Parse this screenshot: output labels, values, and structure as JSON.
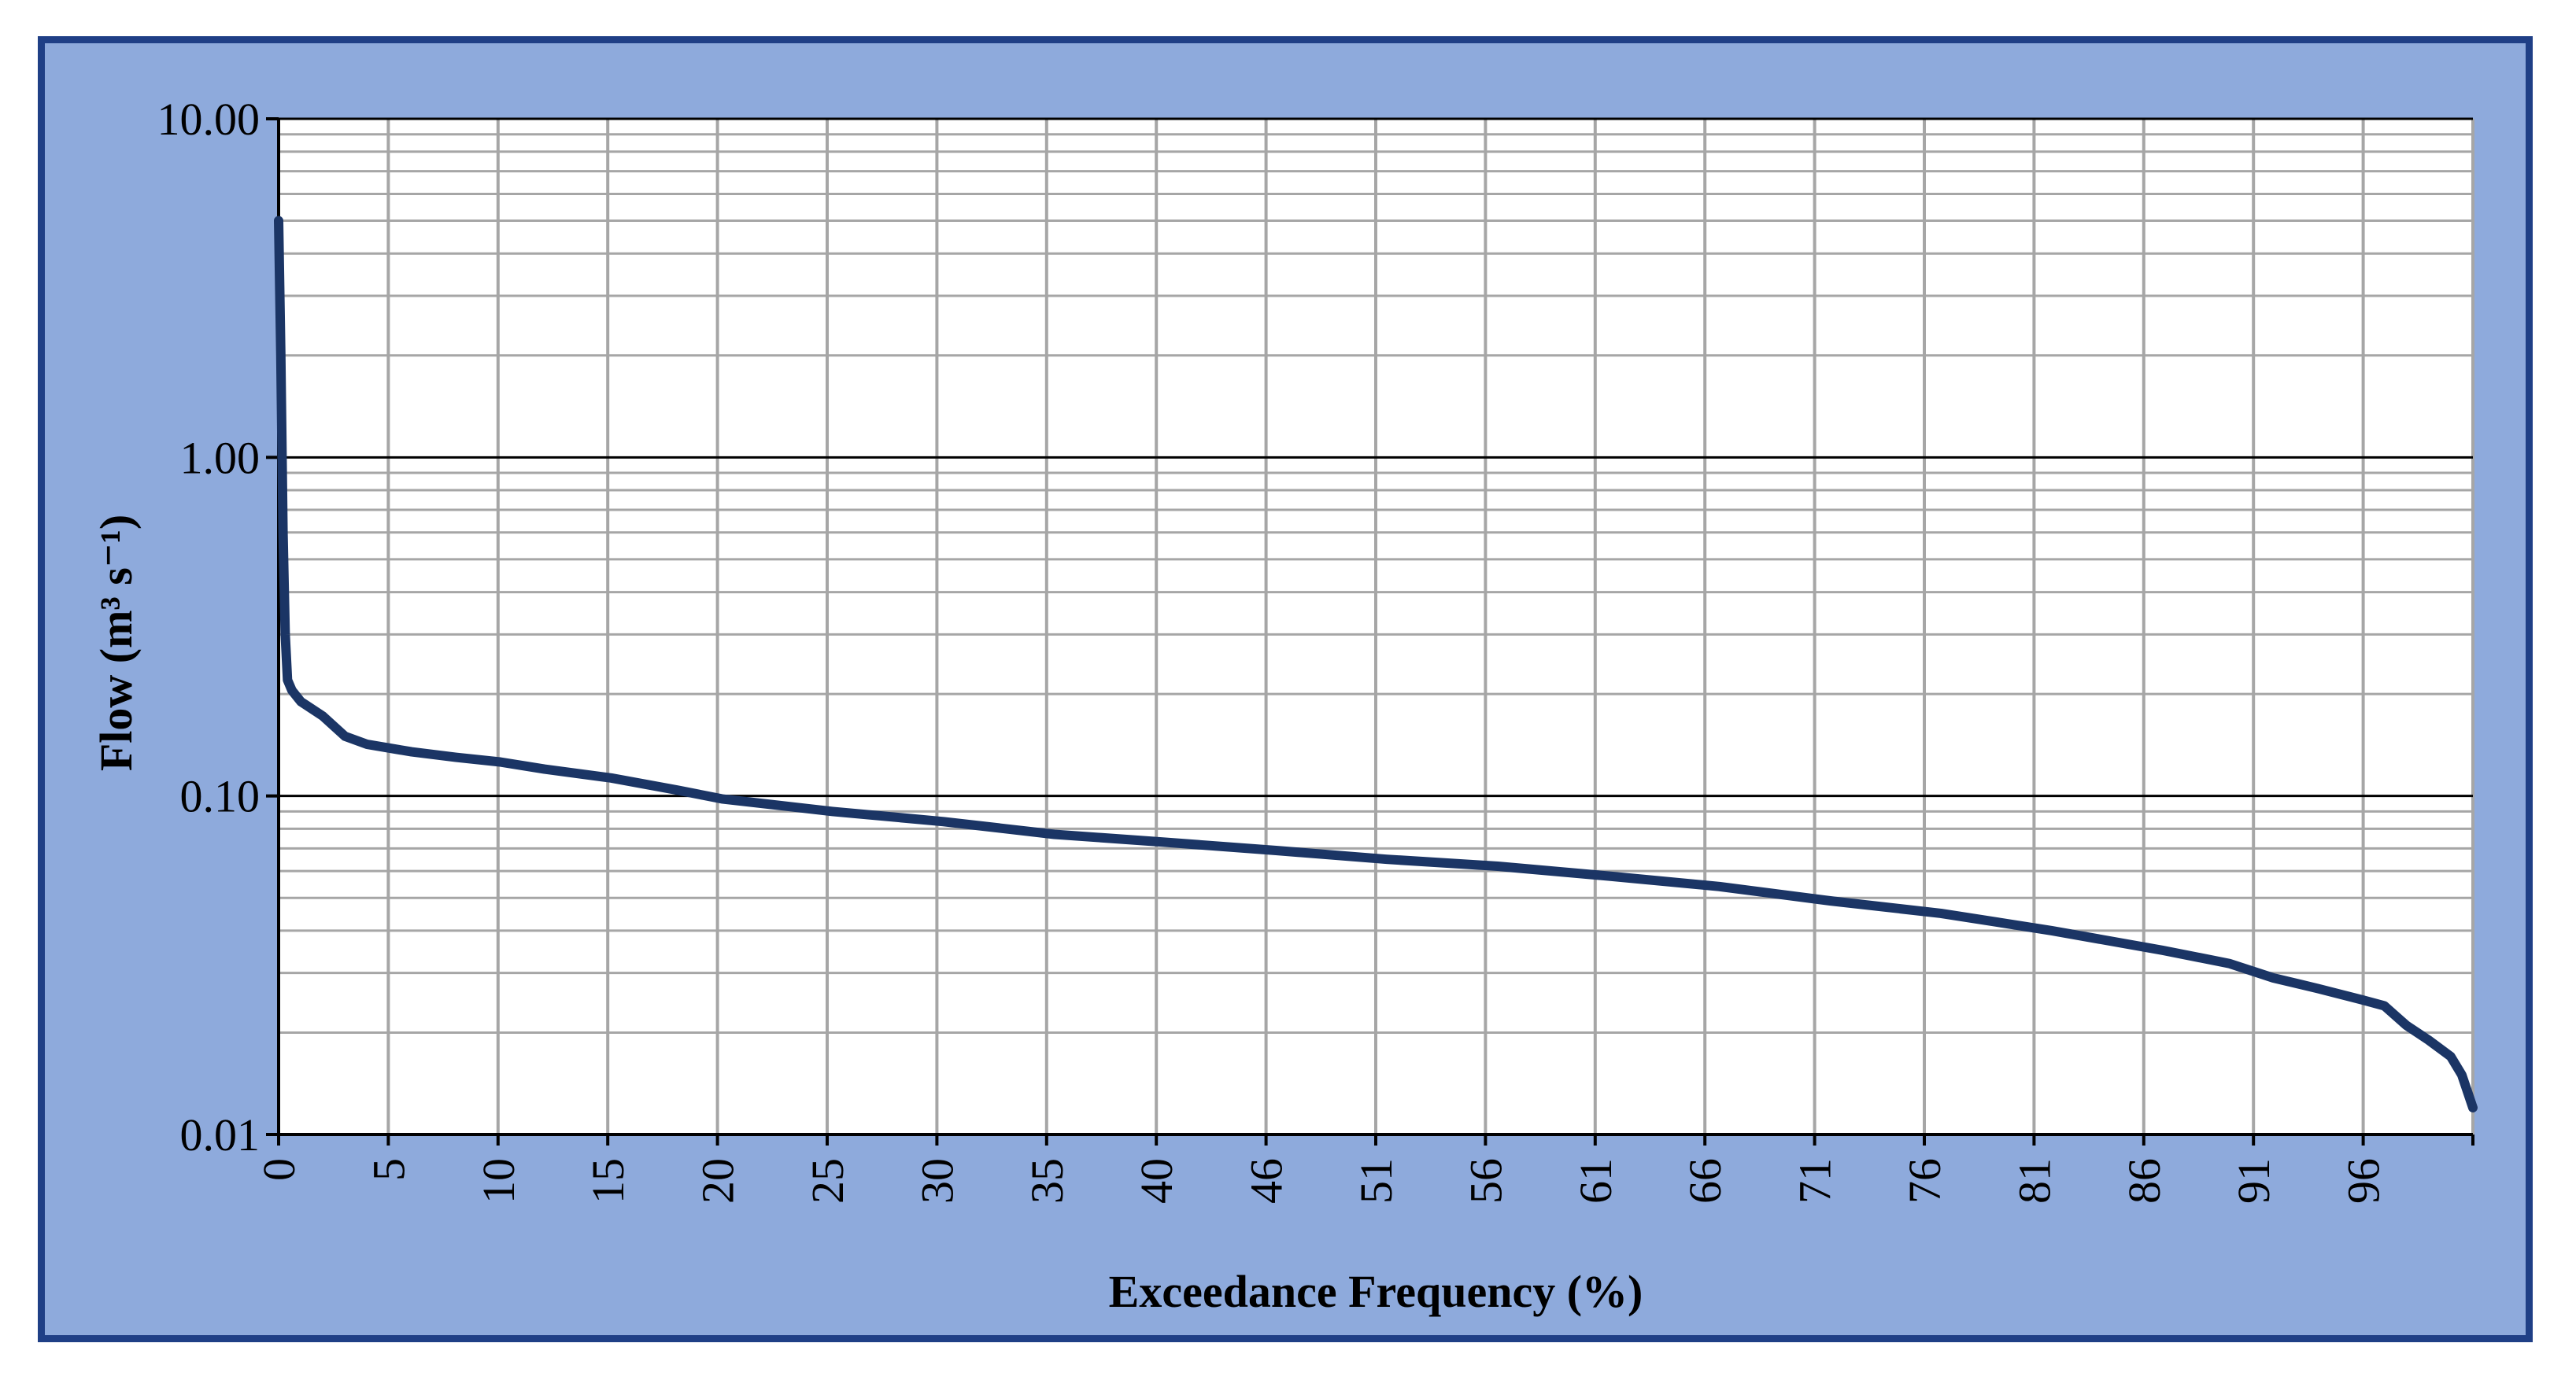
{
  "colors": {
    "frame_border": "#1f3f86",
    "chart_background": "#8eaadc",
    "plot_background": "#ffffff",
    "major_grid": "#000000",
    "minor_grid": "#a6a6a6",
    "series_line": "#1b3565"
  },
  "chart_data": {
    "type": "line",
    "title": "",
    "xlabel": "Exceedance Frequency (%)",
    "ylabel": "Flow (m³ s⁻¹)",
    "x_ticks": [
      "0",
      "5",
      "10",
      "15",
      "20",
      "25",
      "30",
      "35",
      "40",
      "46",
      "51",
      "56",
      "61",
      "66",
      "71",
      "76",
      "81",
      "86",
      "91",
      "96"
    ],
    "y_ticks": [
      "10.00",
      "1.00",
      "0.10",
      "0.01"
    ],
    "y_scale": "log",
    "ylim": [
      0.01,
      10
    ],
    "xlim": [
      0,
      99
    ],
    "grid": true,
    "legend": "none",
    "series": [
      {
        "x": [
          0,
          0.1,
          0.2,
          0.3,
          0.4,
          0.6,
          1,
          2,
          3,
          4,
          6,
          8,
          10,
          12,
          15,
          18,
          20,
          25,
          30,
          35,
          40,
          45,
          50,
          55,
          60,
          65,
          70,
          75,
          80,
          85,
          88,
          90,
          92,
          94,
          95,
          96,
          97,
          98,
          98.5,
          99
        ],
        "y": [
          5.0,
          2.0,
          0.6,
          0.3,
          0.22,
          0.205,
          0.19,
          0.172,
          0.15,
          0.142,
          0.135,
          0.13,
          0.126,
          0.12,
          0.113,
          0.104,
          0.098,
          0.09,
          0.084,
          0.077,
          0.073,
          0.069,
          0.065,
          0.062,
          0.058,
          0.054,
          0.049,
          0.045,
          0.04,
          0.035,
          0.032,
          0.029,
          0.027,
          0.025,
          0.024,
          0.021,
          0.019,
          0.017,
          0.015,
          0.012
        ]
      }
    ]
  }
}
